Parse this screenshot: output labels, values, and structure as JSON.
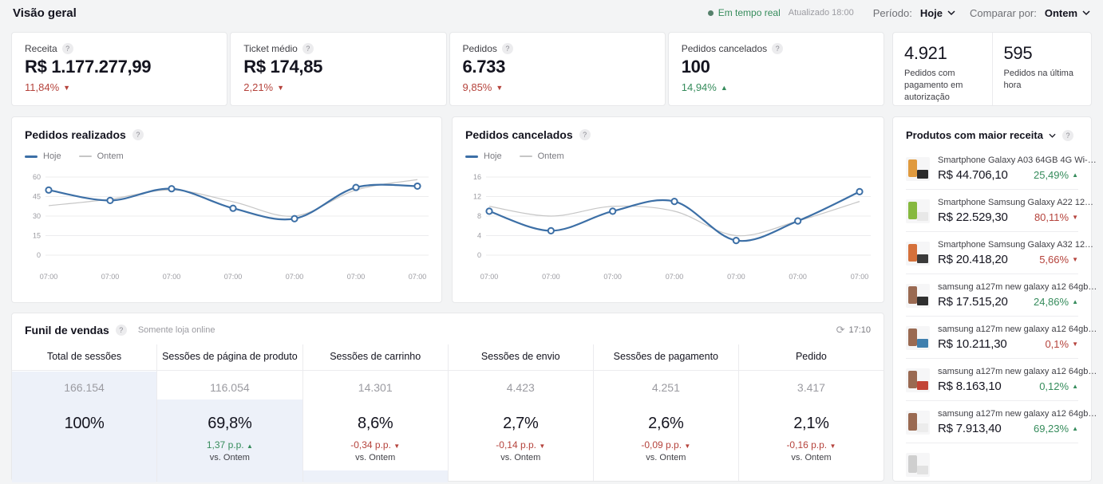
{
  "header": {
    "title": "Visão geral",
    "realtime": "Em tempo real",
    "updated": "Atualizado 18:00",
    "period_label": "Período:",
    "period_value": "Hoje",
    "compare_label": "Comparar por:",
    "compare_value": "Ontem"
  },
  "colors": {
    "positive": "#368c5c",
    "negative": "#b5433c",
    "line_today": "#3c6fa6",
    "line_yesterday": "#c6c6c6",
    "funnel_fill": "#edf1f9"
  },
  "kpis": [
    {
      "label": "Receita",
      "value": "R$ 1.177.277,99",
      "change": "11,84%",
      "direction": "down"
    },
    {
      "label": "Ticket médio",
      "value": "R$ 174,85",
      "change": "2,21%",
      "direction": "down"
    },
    {
      "label": "Pedidos",
      "value": "6.733",
      "change": "9,85%",
      "direction": "down"
    },
    {
      "label": "Pedidos cancelados",
      "value": "100",
      "change": "14,94%",
      "direction": "up"
    }
  ],
  "side_kpis": [
    {
      "value": "4.921",
      "label": "Pedidos com pagamento em autorização"
    },
    {
      "value": "595",
      "label": "Pedidos na última hora"
    }
  ],
  "chart_data": [
    {
      "type": "line",
      "title": "Pedidos realizados",
      "x": [
        "07:00",
        "07:00",
        "07:00",
        "07:00",
        "07:00",
        "07:00",
        "07:00"
      ],
      "yticks": [
        0,
        15,
        30,
        45,
        60
      ],
      "ylim": [
        0,
        60
      ],
      "grid": true,
      "legend_position": "top-left",
      "series": [
        {
          "name": "Hoje",
          "color": "#3c6fa6",
          "width": 2.2,
          "markers": true,
          "values": [
            50,
            42,
            51,
            36,
            28,
            52,
            53
          ]
        },
        {
          "name": "Ontem",
          "color": "#c6c6c6",
          "width": 1.2,
          "markers": false,
          "values": [
            38,
            43,
            50,
            41,
            30,
            50,
            58
          ]
        }
      ]
    },
    {
      "type": "line",
      "title": "Pedidos cancelados",
      "x": [
        "07:00",
        "07:00",
        "07:00",
        "07:00",
        "07:00",
        "07:00",
        "07:00"
      ],
      "yticks": [
        0,
        4,
        8,
        12,
        16
      ],
      "ylim": [
        0,
        16
      ],
      "grid": true,
      "legend_position": "top-left",
      "series": [
        {
          "name": "Hoje",
          "color": "#3c6fa6",
          "width": 2.2,
          "markers": true,
          "values": [
            9,
            5,
            9,
            11,
            3,
            7,
            13
          ]
        },
        {
          "name": "Ontem",
          "color": "#c6c6c6",
          "width": 1.2,
          "markers": false,
          "values": [
            10,
            8,
            10,
            9,
            4,
            7,
            11
          ]
        }
      ]
    }
  ],
  "funnel": {
    "title": "Funil de vendas",
    "subtitle": "Somente loja online",
    "refresh_time": "17:10",
    "vs_label": "vs. Ontem",
    "columns": [
      {
        "header": "Total de sessões",
        "sessions": "166.154",
        "percent": "100%",
        "delta": "",
        "direction": "",
        "vs": ""
      },
      {
        "header": "Sessões de página de produto",
        "sessions": "116.054",
        "percent": "69,8%",
        "delta": "1,37 p.p.",
        "direction": "up",
        "vs": "vs. Ontem"
      },
      {
        "header": "Sessões de carrinho",
        "sessions": "14.301",
        "percent": "8,6%",
        "delta": "-0,34 p.p.",
        "direction": "down",
        "vs": "vs. Ontem"
      },
      {
        "header": "Sessões de envio",
        "sessions": "4.423",
        "percent": "2,7%",
        "delta": "-0,14 p.p.",
        "direction": "down",
        "vs": "vs. Ontem"
      },
      {
        "header": "Sessões de pagamento",
        "sessions": "4.251",
        "percent": "2,6%",
        "delta": "-0,09 p.p.",
        "direction": "down",
        "vs": "vs. Ontem"
      },
      {
        "header": "Pedido",
        "sessions": "3.417",
        "percent": "2,1%",
        "delta": "-0,16 p.p.",
        "direction": "down",
        "vs": "vs. Ontem"
      }
    ]
  },
  "products": {
    "title": "Produtos com maior receita",
    "items": [
      {
        "name": "Smartphone Galaxy A03 64GB 4G Wi-…",
        "price": "R$ 44.706,10",
        "change": "25,49%",
        "direction": "up",
        "thumb": [
          "#e09a3e",
          "#2b2b2b"
        ]
      },
      {
        "name": "Smartphone Samsung Galaxy A22 12…",
        "price": "R$ 22.529,30",
        "change": "80,11%",
        "direction": "down",
        "thumb": [
          "#86b93f",
          "#e8e8e8"
        ]
      },
      {
        "name": "Smartphone Samsung Galaxy A32 12…",
        "price": "R$ 20.418,20",
        "change": "5,66%",
        "direction": "down",
        "thumb": [
          "#d5703a",
          "#3a3a3a"
        ]
      },
      {
        "name": "samsung a127m new galaxy a12 64gb…",
        "price": "R$ 17.515,20",
        "change": "24,86%",
        "direction": "up",
        "thumb": [
          "#9a6a52",
          "#2f2f2f"
        ]
      },
      {
        "name": "samsung a127m new galaxy a12 64gb…",
        "price": "R$ 10.211,30",
        "change": "0,1%",
        "direction": "down",
        "thumb": [
          "#9a6a52",
          "#3f7fae"
        ]
      },
      {
        "name": "samsung a127m new galaxy a12 64gb…",
        "price": "R$ 8.163,10",
        "change": "0,12%",
        "direction": "up",
        "thumb": [
          "#9a6a52",
          "#c24436"
        ]
      },
      {
        "name": "samsung a127m new galaxy a12 64gb…",
        "price": "R$ 7.913,40",
        "change": "69,23%",
        "direction": "up",
        "thumb": [
          "#9a6a52",
          "#ececec"
        ]
      },
      {
        "name": "",
        "price": "",
        "change": "",
        "direction": "",
        "thumb": [
          "#cfcfcf",
          "#e2e2e2"
        ],
        "partial": true
      }
    ]
  }
}
